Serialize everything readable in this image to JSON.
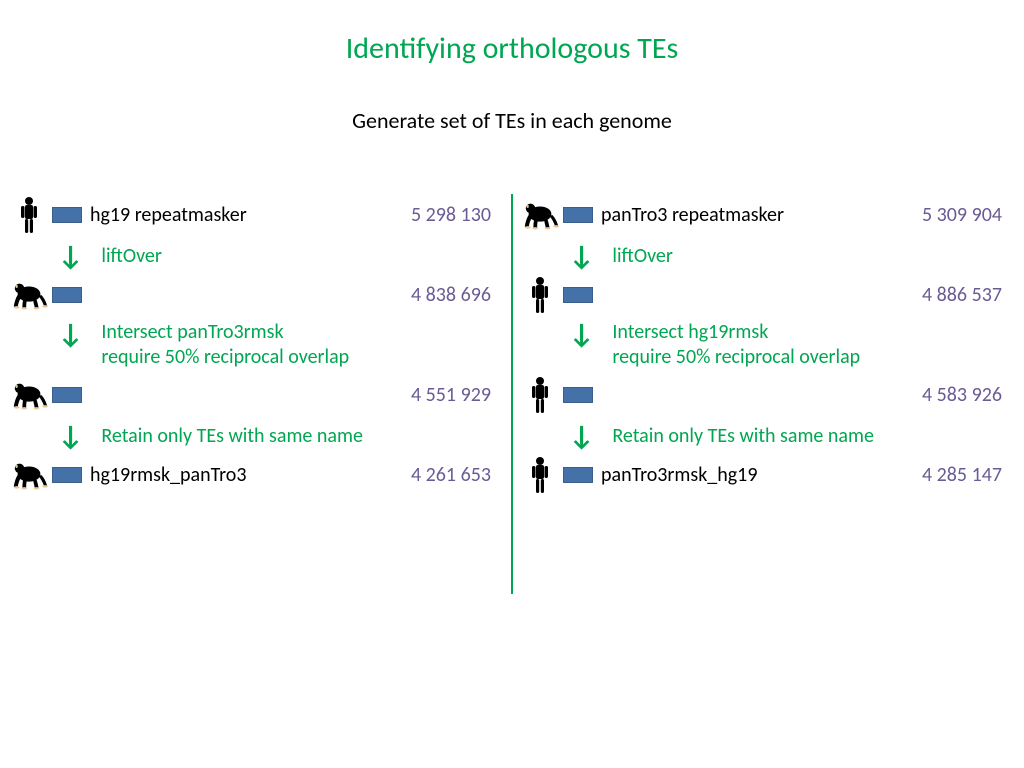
{
  "title": "Identifying orthologous TEs",
  "subtitle": "Generate set of TEs in each genome",
  "colors": {
    "accent": "#00a651",
    "chip_fill": "#4472a8",
    "chip_border": "#3a5f8a",
    "count": "#6b5b95",
    "text": "#000000",
    "bg": "#ffffff"
  },
  "left": {
    "r1": {
      "species": "human",
      "label": "hg19 repeatmasker",
      "count": "5 298 130"
    },
    "s1": "liftOver",
    "r2": {
      "species": "chimp",
      "label": "",
      "count": "4 838 696"
    },
    "s2": "Intersect panTro3rmsk\nrequire 50% reciprocal overlap",
    "r3": {
      "species": "chimp",
      "label": "",
      "count": "4 551 929"
    },
    "s3": "Retain only TEs with same name",
    "r4": {
      "species": "chimp",
      "label": "hg19rmsk_panTro3",
      "count": "4 261 653"
    }
  },
  "right": {
    "r1": {
      "species": "chimp",
      "label": "panTro3 repeatmasker",
      "count": "5 309 904"
    },
    "s1": "liftOver",
    "r2": {
      "species": "human",
      "label": "",
      "count": "4 886 537"
    },
    "s2": "Intersect hg19rmsk\nrequire 50% reciprocal overlap",
    "r3": {
      "species": "human",
      "label": "",
      "count": "4 583 926"
    },
    "s3": "Retain only TEs with same name",
    "r4": {
      "species": "human",
      "label": "panTro3rmsk_hg19",
      "count": "4 285 147"
    }
  }
}
